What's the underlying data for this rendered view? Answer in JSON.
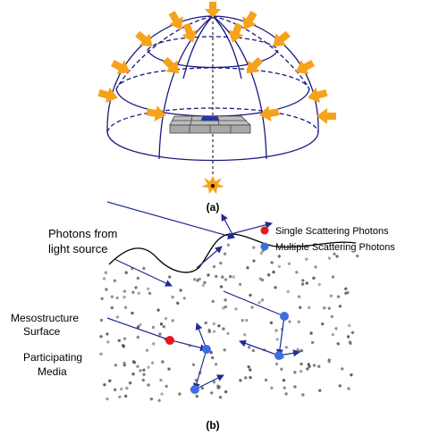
{
  "colors": {
    "dome": "#1a1a80",
    "arrow": "#f7a21b",
    "photon_arrow": "#1f2a90",
    "single_scattering": "#e8161b",
    "multiple_scattering": "#3b6fe0",
    "tile_gray": "#a8a8a8",
    "tile_highlight": "#2233cc",
    "speckle": "#444444"
  },
  "panel_a": {
    "label": "(a)"
  },
  "panel_b": {
    "label": "(b)",
    "photons_from_label_line1": "Photons from",
    "photons_from_label_line2": "light source",
    "mesostructure_label_line1": "Mesostructure",
    "mesostructure_label_line2": "Surface",
    "participating_label_line1": "Participating",
    "participating_label_line2": "Media",
    "legend": {
      "single": "Single Scattering Photons",
      "multiple": "Multiple Scattering Photons"
    }
  }
}
